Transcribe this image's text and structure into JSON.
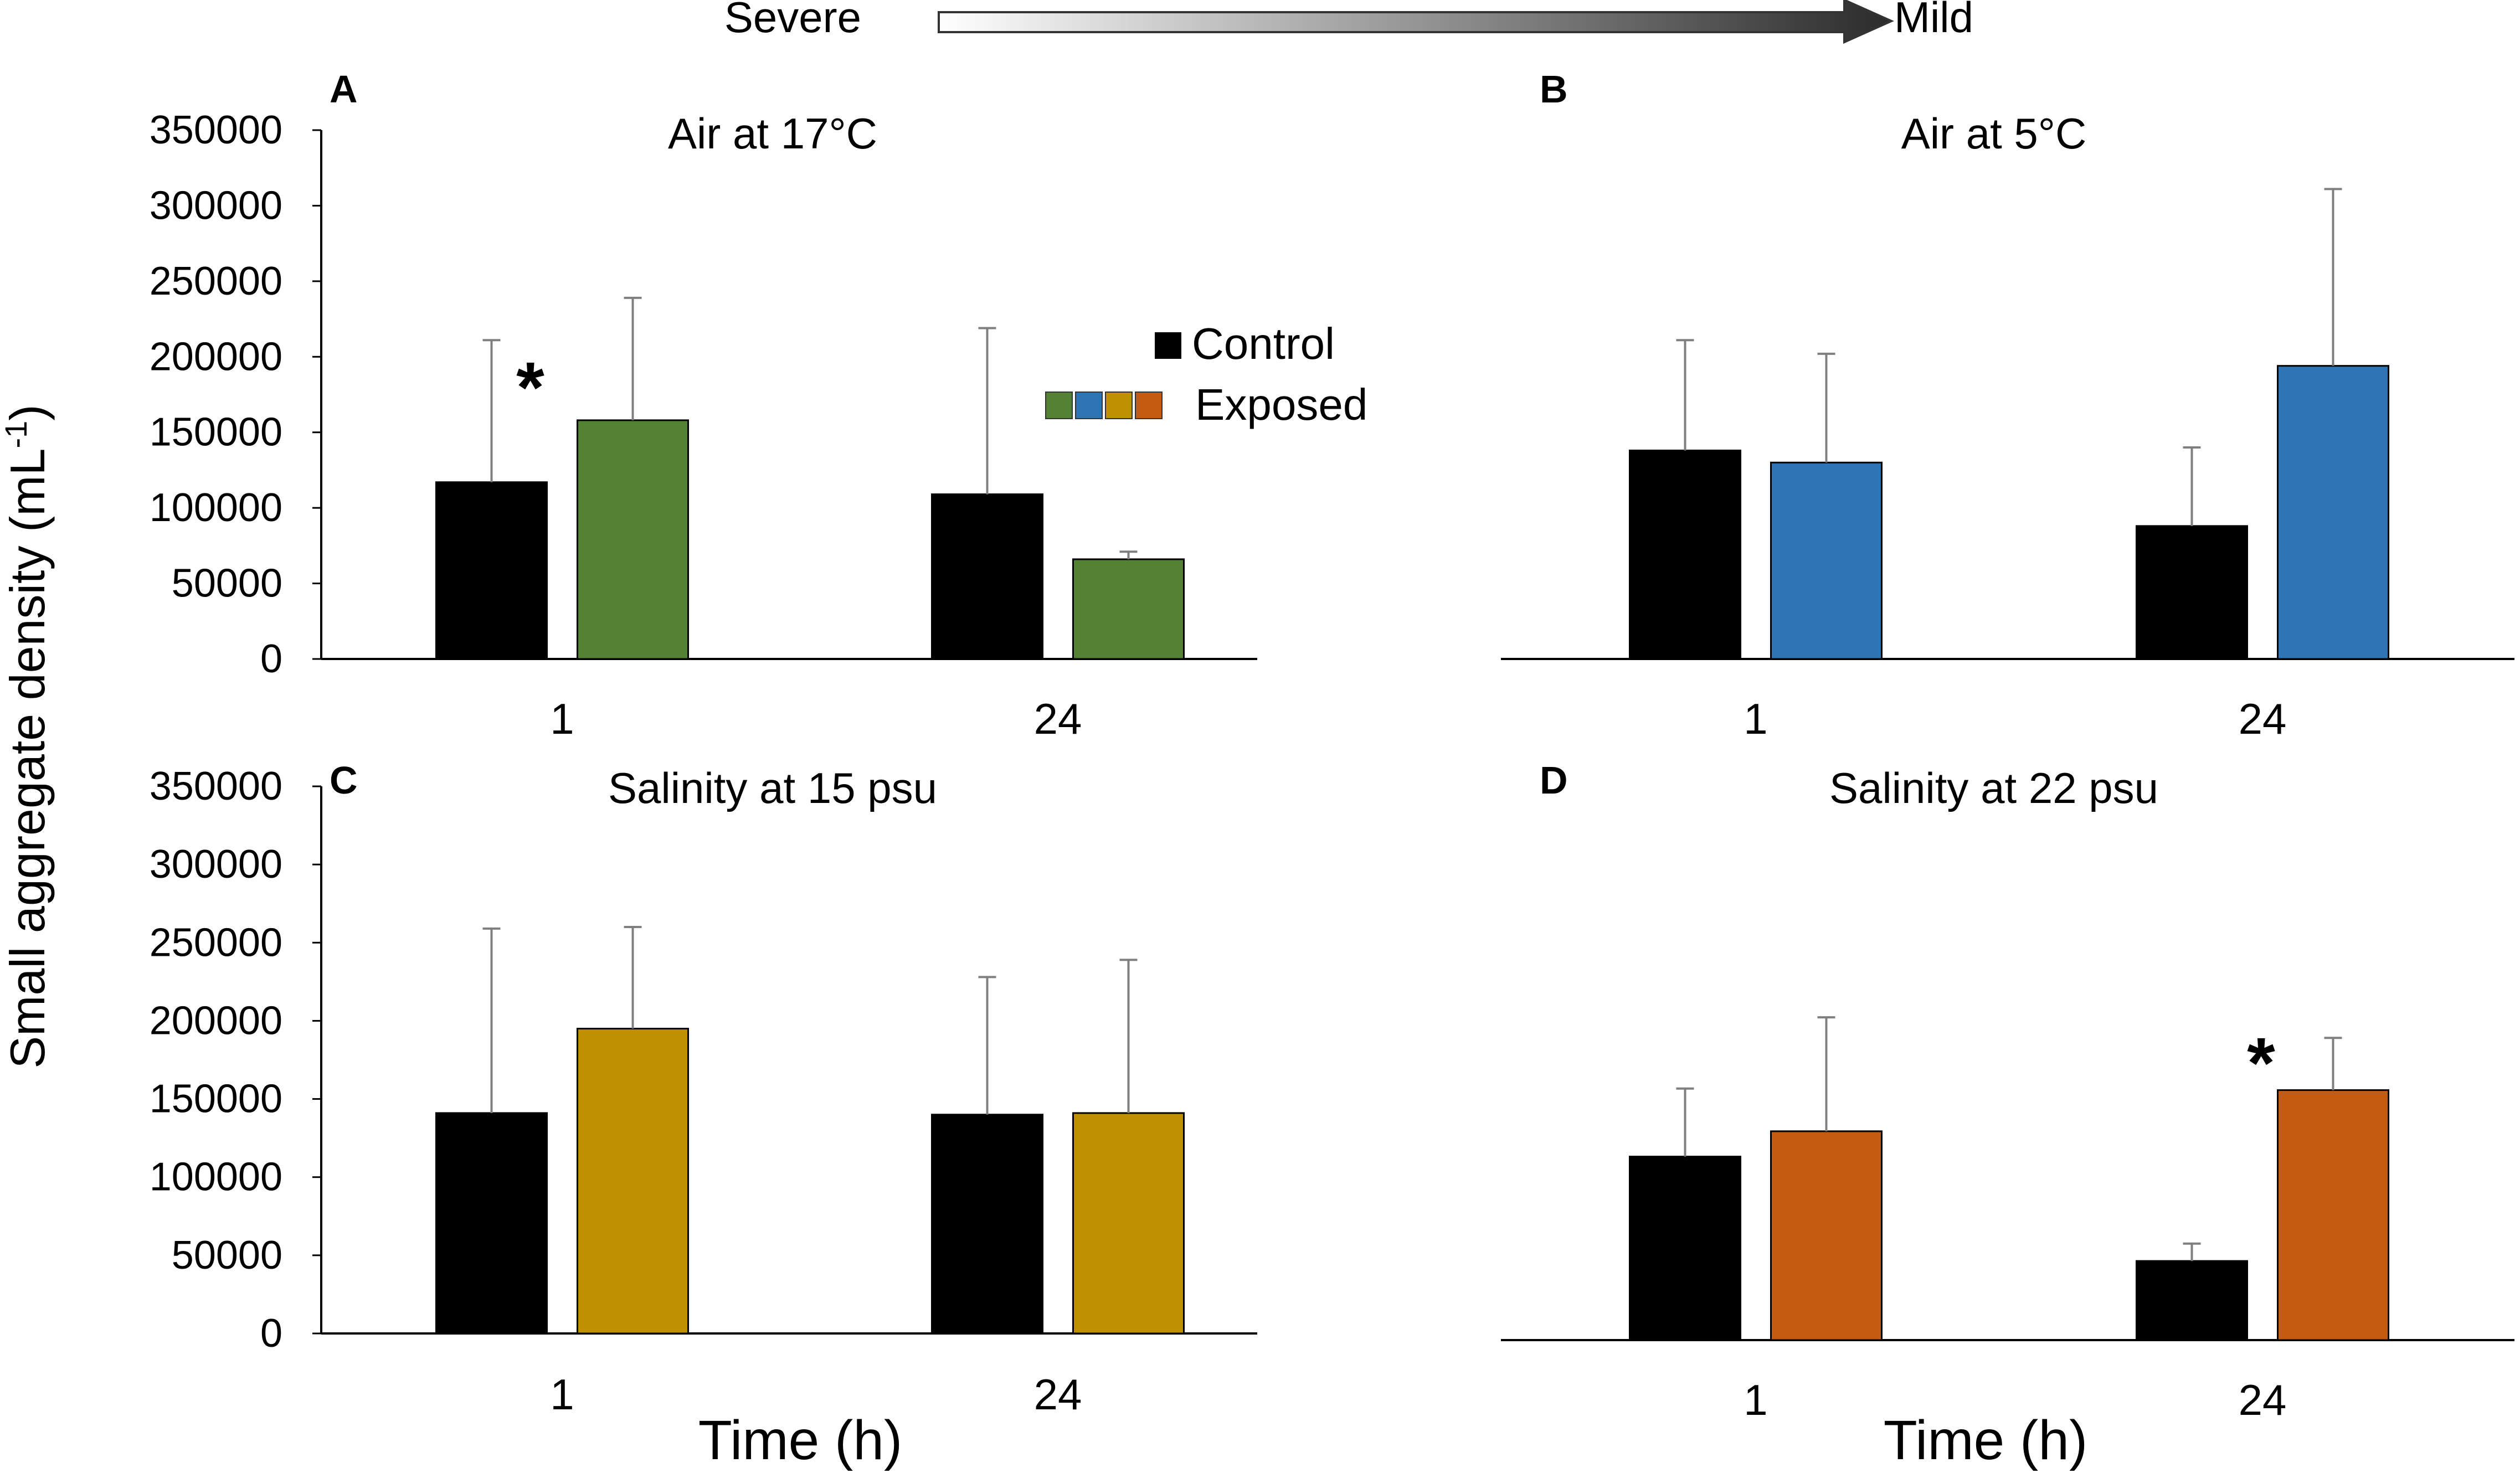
{
  "severity_scale": {
    "left_label": "Severe",
    "right_label": "Mild"
  },
  "y_axis_label": {
    "main": "Small aggregate density (mL",
    "sup": "-1",
    "close": ")"
  },
  "x_axis_label": "Time (h)",
  "legend": {
    "control_label": "Control",
    "exposed_label": "Exposed",
    "exposed_colors": [
      "#548235",
      "#2E75B6",
      "#BF9000",
      "#C55A11"
    ]
  },
  "colors": {
    "control": "#000000",
    "axis": "#000000",
    "error_bar": "#7f7f7f"
  },
  "chart_data": [
    {
      "panel": "A",
      "type": "bar",
      "title": "Air at 17°C",
      "categories": [
        "1",
        "24"
      ],
      "ylim": [
        0,
        350000
      ],
      "yticks": [
        "0",
        "50000",
        "100000",
        "150000",
        "200000",
        "250000",
        "300000",
        "350000"
      ],
      "series": [
        {
          "name": "Control",
          "color": "#000000",
          "values": [
            117000,
            109000
          ],
          "errors": [
            94000,
            110000
          ]
        },
        {
          "name": "Exposed",
          "color": "#548235",
          "values": [
            158000,
            66000
          ],
          "errors": [
            81000,
            5000
          ]
        }
      ],
      "significance": [
        {
          "series": "Control",
          "category": "1",
          "mark": "*"
        }
      ]
    },
    {
      "panel": "B",
      "type": "bar",
      "title": "Air at 5°C",
      "categories": [
        "1",
        "24"
      ],
      "ylim": [
        0,
        350000
      ],
      "series": [
        {
          "name": "Control",
          "color": "#000000",
          "values": [
            138000,
            88000
          ],
          "errors": [
            73000,
            52000
          ]
        },
        {
          "name": "Exposed",
          "color": "#2E75B6",
          "values": [
            130000,
            194000
          ],
          "errors": [
            72000,
            117000
          ]
        }
      ],
      "significance": []
    },
    {
      "panel": "C",
      "type": "bar",
      "title": "Salinity at 15 psu",
      "categories": [
        "1",
        "24"
      ],
      "ylim": [
        0,
        350000
      ],
      "yticks": [
        "0",
        "50000",
        "100000",
        "150000",
        "200000",
        "250000",
        "300000",
        "350000"
      ],
      "series": [
        {
          "name": "Control",
          "color": "#000000",
          "values": [
            141000,
            140000
          ],
          "errors": [
            118000,
            88000
          ]
        },
        {
          "name": "Exposed",
          "color": "#BF9000",
          "values": [
            195000,
            141000
          ],
          "errors": [
            65000,
            98000
          ]
        }
      ],
      "significance": []
    },
    {
      "panel": "D",
      "type": "bar",
      "title": "Salinity at 22 psu",
      "categories": [
        "1",
        "24"
      ],
      "ylim": [
        0,
        350000
      ],
      "series": [
        {
          "name": "Control",
          "color": "#000000",
          "values": [
            116000,
            50000
          ],
          "errors": [
            43000,
            11000
          ]
        },
        {
          "name": "Exposed",
          "color": "#C55A11",
          "values": [
            132000,
            158000
          ],
          "errors": [
            72000,
            33000
          ]
        }
      ],
      "significance": [
        {
          "series": "Exposed",
          "category": "24",
          "mark": "*"
        }
      ]
    }
  ]
}
